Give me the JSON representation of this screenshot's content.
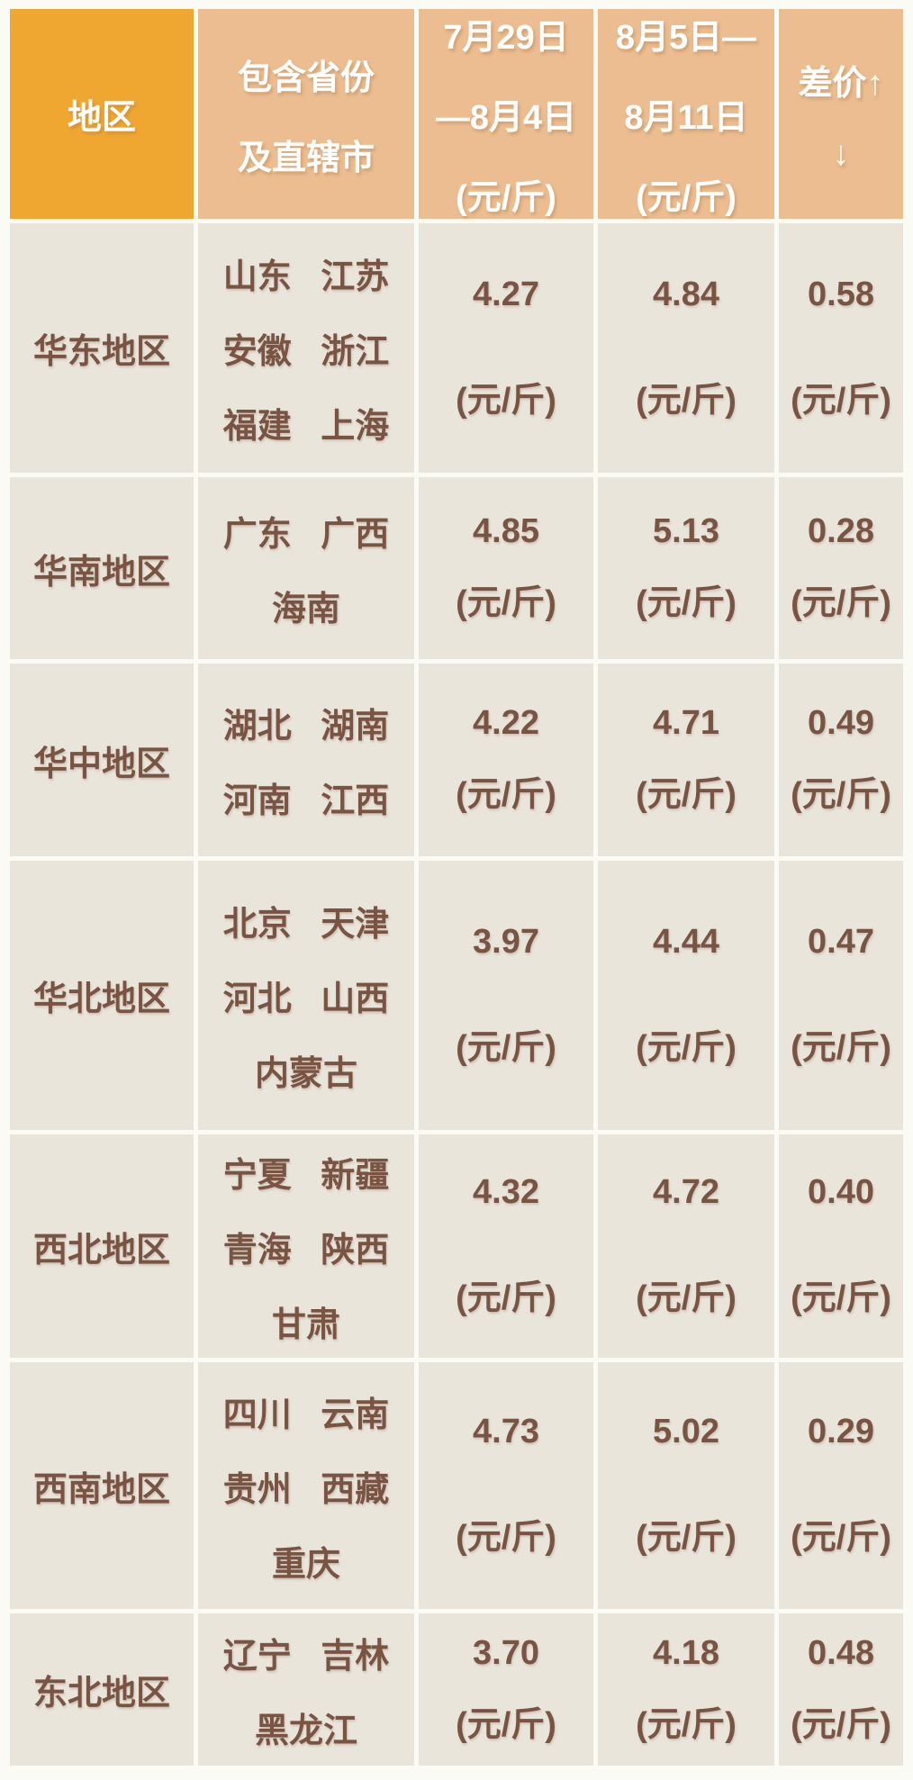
{
  "colors": {
    "page_bg": "#FBFBF5",
    "header_region_bg": "#F0A732",
    "header_bg": "#EBBD90",
    "cell_bg": "#E9E5DB",
    "text_brown": "#7A5443",
    "header_text": "#FFFFFF"
  },
  "header": {
    "region": [
      "地区"
    ],
    "provinces": [
      "包含省份",
      "及直辖市"
    ],
    "week1": [
      "7月29日",
      "—8月4日",
      "(元/斤)"
    ],
    "week2": [
      "8月5日—",
      "8月11日",
      "(元/斤)"
    ],
    "diff": [
      "差价↑",
      "↓"
    ]
  },
  "rows": [
    {
      "region": "华东地区",
      "provinces": [
        "山东 江苏",
        "安徽 浙江",
        "福建 上海"
      ],
      "week1": {
        "value": "4.27",
        "unit": "(元/斤)"
      },
      "week2": {
        "value": "4.84",
        "unit": "(元/斤)"
      },
      "diff": {
        "value": "0.58",
        "unit": "(元/斤)"
      }
    },
    {
      "region": "华南地区",
      "provinces": [
        "广东 广西",
        "海南"
      ],
      "week1": {
        "value": "4.85",
        "unit": "(元/斤)"
      },
      "week2": {
        "value": "5.13",
        "unit": "(元/斤)"
      },
      "diff": {
        "value": "0.28",
        "unit": "(元/斤)"
      }
    },
    {
      "region": "华中地区",
      "provinces": [
        "湖北 湖南",
        "河南 江西"
      ],
      "week1": {
        "value": "4.22",
        "unit": "(元/斤)"
      },
      "week2": {
        "value": "4.71",
        "unit": "(元/斤)"
      },
      "diff": {
        "value": "0.49",
        "unit": "(元/斤)"
      }
    },
    {
      "region": "华北地区",
      "provinces": [
        "北京 天津",
        "河北 山西",
        "内蒙古"
      ],
      "week1": {
        "value": "3.97",
        "unit": "(元/斤)"
      },
      "week2": {
        "value": "4.44",
        "unit": "(元/斤)"
      },
      "diff": {
        "value": "0.47",
        "unit": "(元/斤)"
      }
    },
    {
      "region": "西北地区",
      "provinces": [
        "宁夏 新疆",
        "青海 陕西",
        "甘肃"
      ],
      "week1": {
        "value": "4.32",
        "unit": "(元/斤)"
      },
      "week2": {
        "value": "4.72",
        "unit": "(元/斤)"
      },
      "diff": {
        "value": "0.40",
        "unit": "(元/斤)"
      }
    },
    {
      "region": "西南地区",
      "provinces": [
        "四川 云南",
        "贵州 西藏",
        "重庆"
      ],
      "week1": {
        "value": "4.73",
        "unit": "(元/斤)"
      },
      "week2": {
        "value": "5.02",
        "unit": "(元/斤)"
      },
      "diff": {
        "value": "0.29",
        "unit": "(元/斤)"
      }
    },
    {
      "region": "东北地区",
      "provinces": [
        "辽宁 吉林",
        "黑龙江"
      ],
      "week1": {
        "value": "3.70",
        "unit": "(元/斤)"
      },
      "week2": {
        "value": "4.18",
        "unit": "(元/斤)"
      },
      "diff": {
        "value": "0.48",
        "unit": "(元/斤)"
      }
    }
  ],
  "chart_data": {
    "type": "table",
    "columns": [
      "地区",
      "包含省份及直辖市",
      "7月29日—8月4日(元/斤)",
      "8月5日—8月11日(元/斤)",
      "差价↑↓"
    ],
    "rows": [
      [
        "华东地区",
        "山东 江苏 安徽 浙江 福建 上海",
        4.27,
        4.84,
        0.58
      ],
      [
        "华南地区",
        "广东 广西 海南",
        4.85,
        5.13,
        0.28
      ],
      [
        "华中地区",
        "湖北 湖南 河南 江西",
        4.22,
        4.71,
        0.49
      ],
      [
        "华北地区",
        "北京 天津 河北 山西 内蒙古",
        3.97,
        4.44,
        0.47
      ],
      [
        "西北地区",
        "宁夏 新疆 青海 陕西 甘肃",
        4.32,
        4.72,
        0.4
      ],
      [
        "西南地区",
        "四川 云南 贵州 西藏 重庆",
        4.73,
        5.02,
        0.29
      ],
      [
        "东北地区",
        "辽宁 吉林 黑龙江",
        3.7,
        4.18,
        0.48
      ]
    ],
    "unit": "元/斤"
  }
}
